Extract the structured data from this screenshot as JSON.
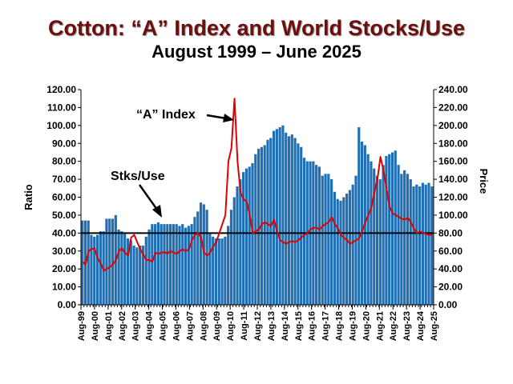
{
  "header": {
    "title": "Cotton:  “A” Index and World Stocks/Use",
    "subtitle": "August 1999 – June 2025"
  },
  "chart_data": {
    "type": "bar+line",
    "ylabel": "Ratio",
    "y2label": "Price",
    "ylim": [
      0,
      120
    ],
    "y2lim": [
      0,
      240
    ],
    "yticks": [
      "0.00",
      "10.00",
      "20.00",
      "30.00",
      "40.00",
      "50.00",
      "60.00",
      "70.00",
      "80.00",
      "90.00",
      "100.00",
      "110.00",
      "120.00"
    ],
    "y2ticks": [
      "0.00",
      "20.00",
      "40.00",
      "60.00",
      "80.00",
      "100.00",
      "120.00",
      "140.00",
      "160.00",
      "180.00",
      "200.00",
      "220.00",
      "240.00"
    ],
    "xticks": [
      "Aug-99",
      "Aug-00",
      "Aug-01",
      "Aug-02",
      "Aug-03",
      "Aug-04",
      "Aug-05",
      "Aug-06",
      "Aug-07",
      "Aug-08",
      "Aug-09",
      "Aug-10",
      "Aug-11",
      "Aug-12",
      "Aug-13",
      "Aug-14",
      "Aug-15",
      "Aug-16",
      "Aug-17",
      "Aug-18",
      "Aug-19",
      "Aug-20",
      "Aug-21",
      "Aug-22",
      "Aug-23",
      "Aug-24",
      "Aug-25"
    ],
    "reference_line": {
      "axis": "ratio",
      "value": 40
    },
    "annotations": [
      {
        "text": "“A” Index",
        "points_to": "A Index peak 2011"
      },
      {
        "text": "Stks/Use",
        "points_to": "Stocks/Use bars 2005"
      }
    ],
    "series": [
      {
        "name": "Stks/Use",
        "type": "bar",
        "axis": "ratio",
        "color": "#1f6fb2",
        "x_start": "Aug-99",
        "interval_months": 3,
        "values": [
          47,
          47,
          47,
          39,
          38,
          39,
          41,
          41,
          48,
          48,
          48,
          50,
          42,
          41,
          40,
          37,
          36,
          33,
          32,
          33,
          33,
          38,
          42,
          45,
          45,
          46,
          45,
          45,
          45,
          45,
          45,
          45,
          44,
          45,
          43,
          44,
          45,
          49,
          52,
          57,
          56,
          53,
          40,
          38,
          37,
          37,
          37,
          38,
          44,
          53,
          60,
          66,
          70,
          74,
          76,
          77,
          79,
          84,
          87,
          88,
          89,
          92,
          93,
          97,
          98,
          99,
          100,
          96,
          94,
          95,
          93,
          90,
          88,
          82,
          80,
          80,
          80,
          78,
          77,
          72,
          73,
          73,
          70,
          63,
          59,
          58,
          60,
          62,
          64,
          67,
          72,
          99,
          91,
          89,
          84,
          80,
          76,
          72,
          70,
          78,
          83,
          84,
          85,
          86,
          78,
          73,
          75,
          73,
          70,
          66,
          67,
          66,
          68,
          67,
          68,
          66
        ]
      },
      {
        "name": "“A” Index",
        "type": "line",
        "axis": "price",
        "color": "#e00000",
        "x_start": "Aug-99",
        "interval_months": 3,
        "values": [
          48,
          45,
          60,
          62,
          63,
          52,
          46,
          38,
          40,
          42,
          45,
          50,
          60,
          63,
          58,
          55,
          75,
          78,
          70,
          62,
          56,
          50,
          50,
          48,
          58,
          57,
          58,
          59,
          57,
          60,
          58,
          57,
          60,
          62,
          60,
          62,
          72,
          78,
          80,
          75,
          58,
          55,
          58,
          65,
          70,
          80,
          90,
          100,
          160,
          175,
          230,
          160,
          125,
          118,
          115,
          100,
          80,
          82,
          84,
          90,
          92,
          90,
          88,
          95,
          82,
          72,
          70,
          68,
          70,
          71,
          70,
          72,
          75,
          78,
          80,
          84,
          86,
          86,
          84,
          88,
          90,
          92,
          98,
          90,
          85,
          78,
          75,
          72,
          68,
          70,
          72,
          74,
          82,
          92,
          100,
          108,
          125,
          140,
          165,
          150,
          130,
          110,
          102,
          100,
          98,
          96,
          95,
          97,
          92,
          85,
          80,
          82,
          80,
          79,
          78,
          78
        ]
      }
    ]
  }
}
